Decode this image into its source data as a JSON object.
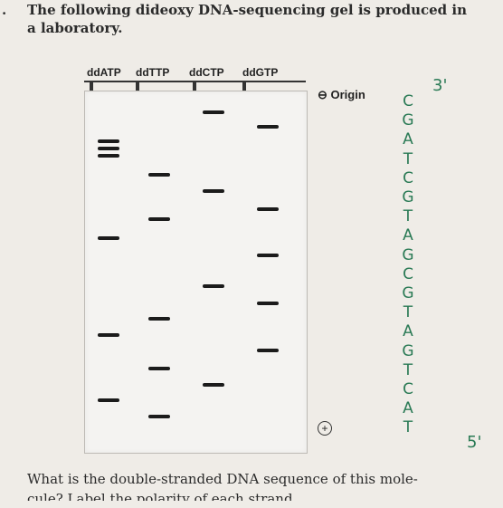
{
  "question": {
    "number": ".",
    "line1": "The following dideoxy DNA-sequencing gel is produced in",
    "line2": "a laboratory."
  },
  "gel": {
    "lanes": [
      {
        "label": "ddATP"
      },
      {
        "label": "ddTTP"
      },
      {
        "label": "ddCTP"
      },
      {
        "label": "ddGTP"
      }
    ],
    "origin_label": "⊖ Origin",
    "positive_label": "+"
  },
  "annotation": {
    "three_prime": "3'",
    "five_prime": "5'",
    "sequence": [
      "C",
      "G",
      "A",
      "T",
      "C",
      "G",
      "T",
      "A",
      "G",
      "C",
      "G",
      "T",
      "A",
      "G",
      "T",
      "C",
      "A",
      "T"
    ]
  },
  "footer": {
    "line1": "What is the double-stranded DNA sequence of this mole-",
    "line2": "cule? Label the polarity of each strand."
  }
}
